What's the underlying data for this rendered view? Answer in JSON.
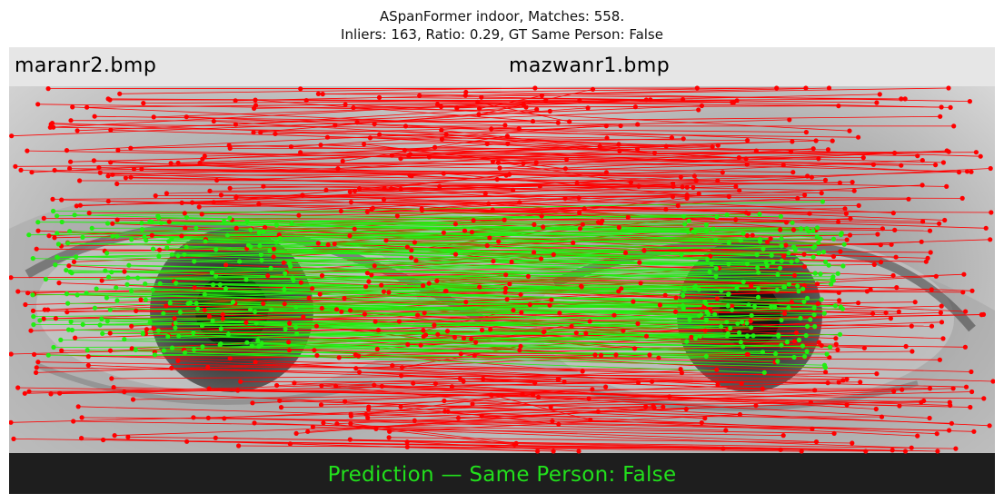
{
  "title": {
    "line1": "ASpanFormer indoor, Matches: 558.",
    "line2": "Inliers: 163, Ratio: 0.29, GT Same Person: False"
  },
  "images": {
    "left_label": "maranr2.bmp",
    "right_label": "mazwanr1.bmp"
  },
  "prediction": "Prediction — Same Person: False",
  "colors": {
    "outlier": "#ff0000",
    "inlier": "#22ee11",
    "prediction_text": "#22e01c",
    "header_bar": "#e6e6e6",
    "footer_bar": "#1e1e1e"
  },
  "matches": {
    "total": 558,
    "inliers": 163
  }
}
